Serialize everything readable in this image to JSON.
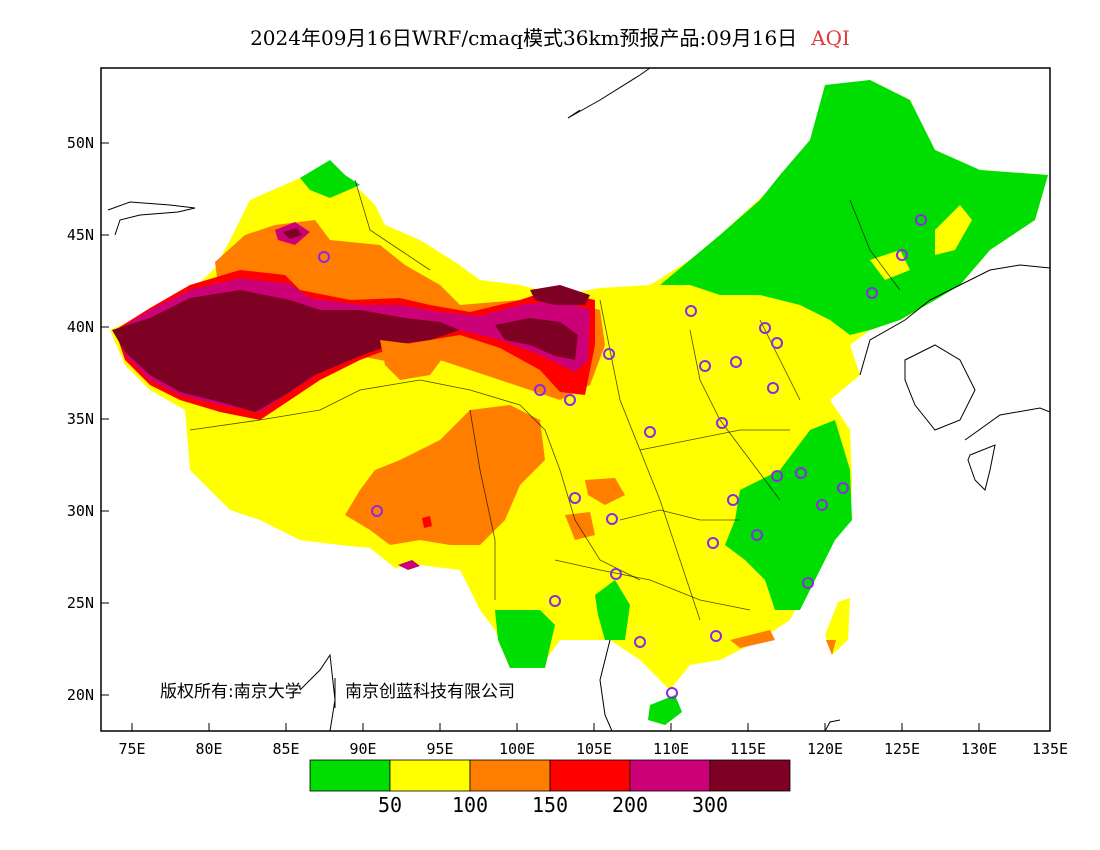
{
  "title": {
    "main": "2024年09月16日WRF/cmaq模式36km预报产品:09月16日",
    "variable": "AQI"
  },
  "axes": {
    "lat_labels": [
      "50N",
      "45N",
      "40N",
      "35N",
      "30N",
      "25N",
      "20N"
    ],
    "lon_labels": [
      "75E",
      "80E",
      "85E",
      "90E",
      "95E",
      "100E",
      "105E",
      "110E",
      "115E",
      "120E",
      "125E",
      "130E",
      "135E"
    ]
  },
  "copyright": {
    "text1": "版权所有:南京大学",
    "text2": "南京创蓝科技有限公司"
  },
  "legend": {
    "colors": [
      "#00dd00",
      "#ffff00",
      "#ff7e00",
      "#ff0000",
      "#cc0077",
      "#7e0023"
    ],
    "labels": [
      "50",
      "100",
      "150",
      "200",
      "300"
    ]
  }
}
